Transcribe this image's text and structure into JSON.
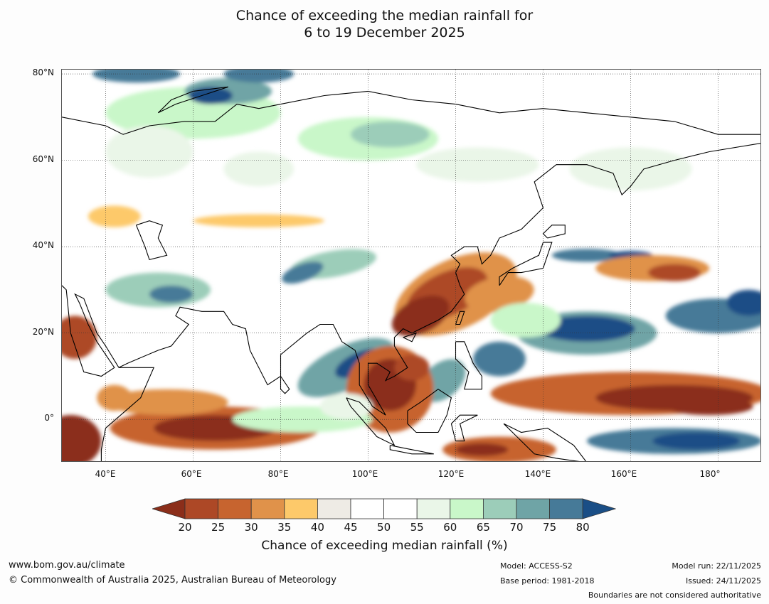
{
  "title": {
    "line1": "Chance of exceeding the median rainfall for",
    "line2": "6 to 19 December 2025"
  },
  "map": {
    "lat_labels": [
      {
        "value": 80,
        "label": "80°N"
      },
      {
        "value": 60,
        "label": "60°N"
      },
      {
        "value": 40,
        "label": "40°N"
      },
      {
        "value": 20,
        "label": "20°N"
      },
      {
        "value": 0,
        "label": "0°"
      }
    ],
    "lon_labels": [
      {
        "value": 40,
        "label": "40°E"
      },
      {
        "value": 60,
        "label": "60°E"
      },
      {
        "value": 80,
        "label": "80°E"
      },
      {
        "value": 100,
        "label": "100°E"
      },
      {
        "value": 120,
        "label": "120°E"
      },
      {
        "value": 140,
        "label": "140°E"
      },
      {
        "value": 160,
        "label": "160°E"
      },
      {
        "value": 180,
        "label": "180°"
      }
    ],
    "extent": {
      "lon": [
        30,
        190
      ],
      "lat": [
        -10,
        81
      ]
    }
  },
  "colorbar": {
    "ticks": [
      "20",
      "25",
      "30",
      "35",
      "40",
      "45",
      "50",
      "55",
      "60",
      "65",
      "70",
      "75",
      "80"
    ],
    "colors": {
      "below_20": "#8b2e1a",
      "20_25": "#ad4826",
      "25_30": "#c7642f",
      "30_35": "#e0924a",
      "35_40": "#fdc96a",
      "40_45": "#eeebe5",
      "45_50": "#ffffff",
      "50_55": "#ffffff",
      "55_60": "#eaf6e8",
      "60_65": "#c9f7c9",
      "65_70": "#9ccdb9",
      "70_75": "#6fa4a6",
      "75_80": "#467a98",
      "above_80": "#1a4e86"
    },
    "label": "Chance of exceeding median rainfall (%)"
  },
  "footer": {
    "website": "www.bom.gov.au/climate",
    "copyright": "© Commonwealth of Australia 2025, Australian Bureau of Meteorology",
    "model": "Model: ACCESS-S2",
    "base_period": "Base period: 1981-2018",
    "model_run": "Model run: 22/11/2025",
    "issued": "Issued: 24/11/2025",
    "disclaimer": "Boundaries are not considered authoritative"
  }
}
